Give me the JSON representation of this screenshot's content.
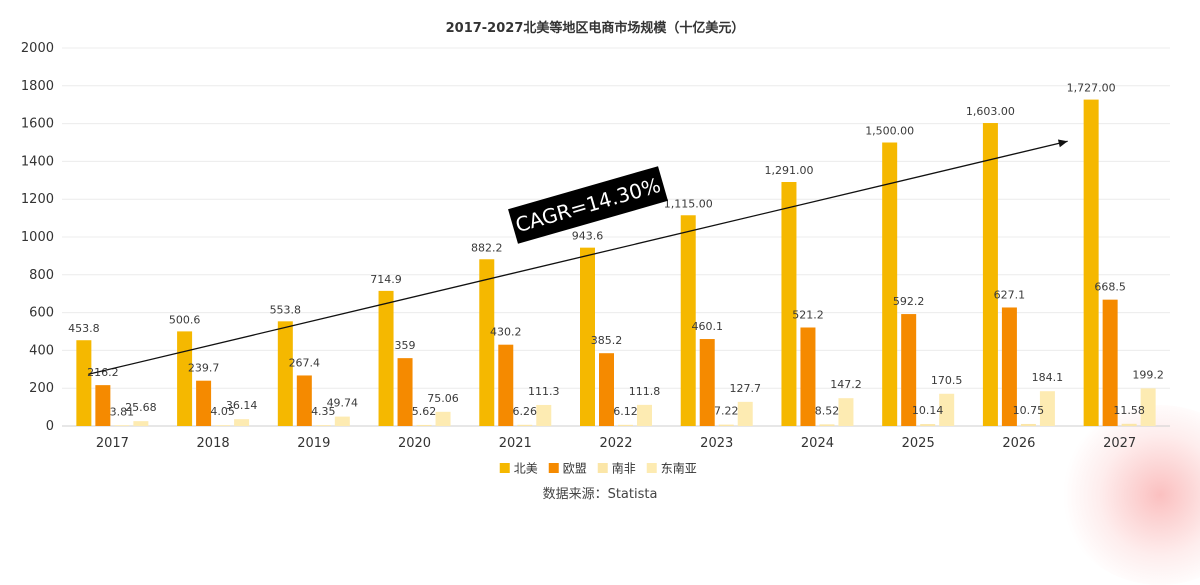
{
  "chart_data": {
    "type": "bar",
    "title": "2017-2027北美等地区电商市场规模（十亿美元）",
    "categories": [
      "2017",
      "2018",
      "2019",
      "2020",
      "2021",
      "2022",
      "2023",
      "2024",
      "2025",
      "2026",
      "2027"
    ],
    "series": [
      {
        "name": "北美",
        "color": "#F5B800",
        "values": [
          453.8,
          500.6,
          553.8,
          714.9,
          882.2,
          943.6,
          1115,
          1291,
          1500,
          1603,
          1727
        ],
        "labels": [
          "453.8",
          "500.6",
          "553.8",
          "714.9",
          "882.2",
          "943.6",
          "1,115.00",
          "1,291.00",
          "1,500.00",
          "1,603.00",
          "1,727.00"
        ]
      },
      {
        "name": "欧盟",
        "color": "#F58A00",
        "values": [
          216.2,
          239.7,
          267.4,
          359,
          430.2,
          385.2,
          460.1,
          521.2,
          592.2,
          627.1,
          668.5
        ],
        "labels": [
          "216.2",
          "239.7",
          "267.4",
          "359",
          "430.2",
          "385.2",
          "460.1",
          "521.2",
          "592.2",
          "627.1",
          "668.5"
        ]
      },
      {
        "name": "南非",
        "color": "#FBE6A8",
        "values": [
          3.81,
          4.05,
          4.35,
          5.62,
          6.26,
          6.12,
          7.22,
          8.52,
          10.14,
          10.75,
          11.58
        ],
        "labels": [
          "3.81",
          "4.05",
          "4.35",
          "5.62",
          "6.26",
          "6.12",
          "7.22",
          "8.52",
          "10.14",
          "10.75",
          "11.58"
        ]
      },
      {
        "name": "东南亚",
        "color": "#FDEBB2",
        "values": [
          25.68,
          36.14,
          49.74,
          75.06,
          111.3,
          111.8,
          127.7,
          147.2,
          170.5,
          184.1,
          199.2
        ],
        "labels": [
          "25.68",
          "36.14",
          "49.74",
          "75.06",
          "111.3",
          "111.8",
          "127.7",
          "147.2",
          "170.5",
          "184.1",
          "199.2"
        ]
      }
    ],
    "y_ticks": [
      "0",
      "200",
      "400",
      "600",
      "800",
      "1000",
      "1200",
      "1400",
      "1600",
      "1800",
      "2000"
    ],
    "ylim": [
      0,
      2000
    ],
    "grid": true,
    "legend_position": "bottom-center",
    "annotation": {
      "text": "CAGR=14.30%",
      "arrow_from": {
        "x": "2017",
        "y": 300
      },
      "arrow_to": {
        "x": "2027",
        "y": 1570
      }
    },
    "source": "数据来源：Statista"
  }
}
